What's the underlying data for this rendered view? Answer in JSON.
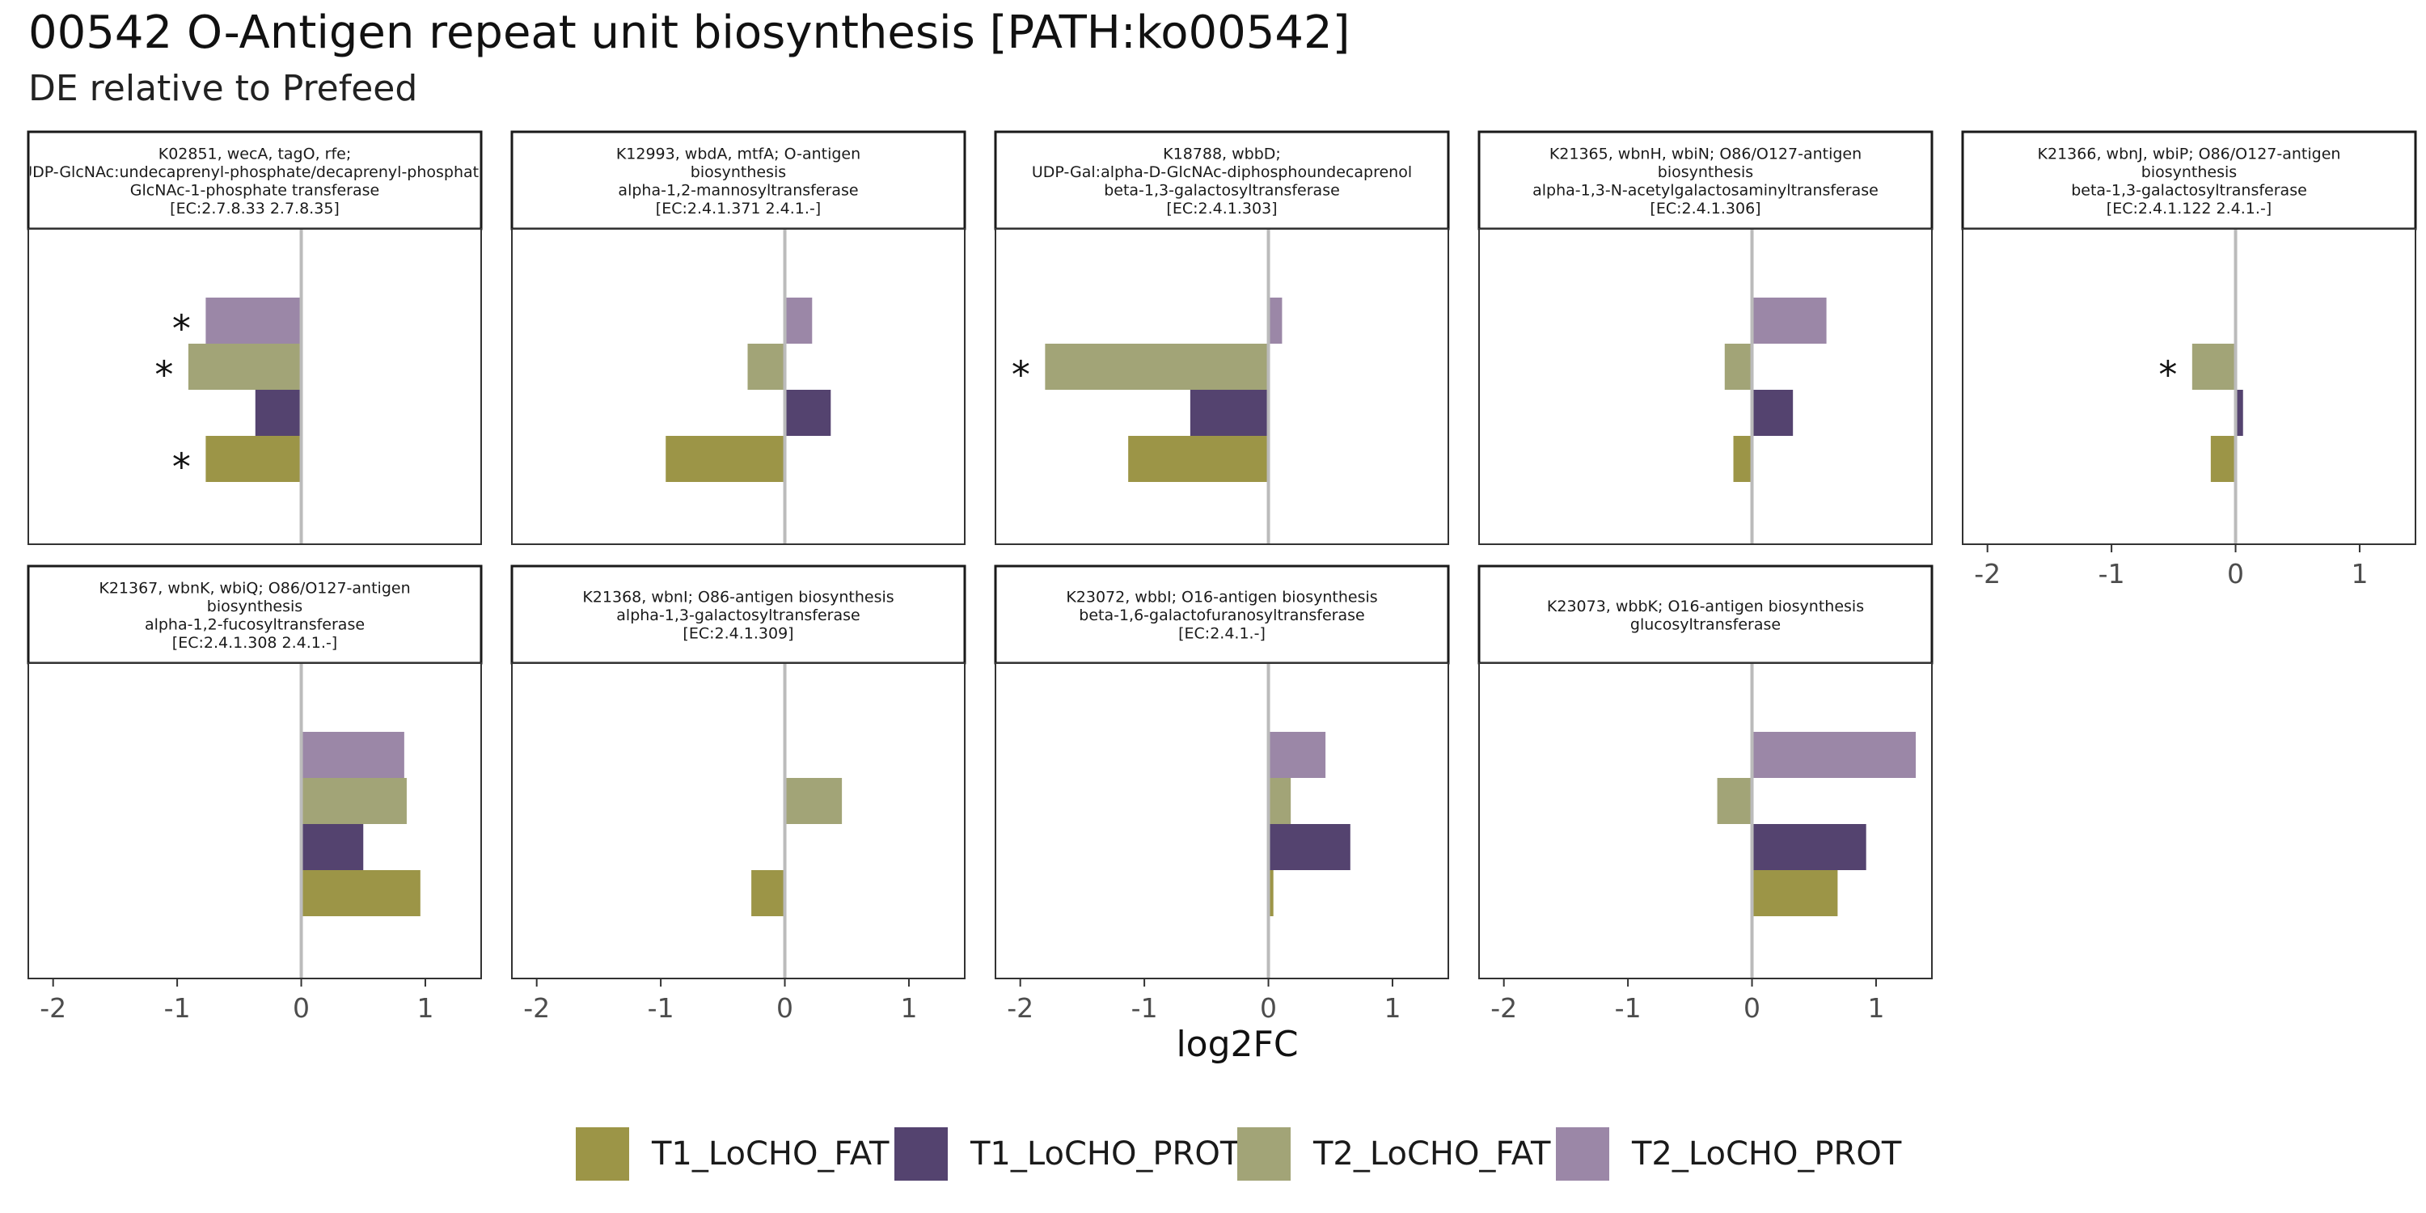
{
  "header": {
    "title": "00542 O-Antigen repeat unit biosynthesis [PATH:ko00542]",
    "subtitle": "DE relative to Prefeed"
  },
  "colors": {
    "T1_LoCHO_FAT": "#9c9547",
    "T1_LoCHO_PROT": "#54436f",
    "T2_LoCHO_FAT": "#a2a477",
    "T2_LoCHO_PROT": "#9b87a7",
    "zero_line": "#bbbbbb",
    "panel_border": "#333333",
    "strip_border": "#1a1a1a"
  },
  "chart_data": {
    "type": "bar",
    "orientation": "horizontal",
    "xlabel": "log2FC",
    "xlim": [
      -2.2,
      1.45
    ],
    "xticks": [
      -2,
      -1,
      0,
      1
    ],
    "xtick_labels": [
      "-2",
      "-1",
      "0",
      "1"
    ],
    "grid": false,
    "legend_position": "bottom",
    "series_order": [
      "T2_LoCHO_PROT",
      "T2_LoCHO_FAT",
      "T1_LoCHO_PROT",
      "T1_LoCHO_FAT"
    ],
    "legend": [
      "T1_LoCHO_FAT",
      "T1_LoCHO_PROT",
      "T2_LoCHO_FAT",
      "T2_LoCHO_PROT"
    ],
    "significance_marker": "*",
    "panels": [
      {
        "strip": [
          "K02851, wecA, tagO, rfe;",
          "UDP-GlcNAc:undecaprenyl-phosphate/decaprenyl-phosphate",
          "GlcNAc-1-phosphate transferase",
          "[EC:2.7.8.33 2.7.8.35]"
        ],
        "values": {
          "T2_LoCHO_PROT": -0.77,
          "T2_LoCHO_FAT": -0.91,
          "T1_LoCHO_PROT": -0.37,
          "T1_LoCHO_FAT": -0.77
        },
        "significant": {
          "T2_LoCHO_PROT": true,
          "T2_LoCHO_FAT": true,
          "T1_LoCHO_PROT": false,
          "T1_LoCHO_FAT": true
        }
      },
      {
        "strip": [
          "K12993, wbdA, mtfA; O-antigen",
          "biosynthesis",
          "alpha-1,2-mannosyltransferase",
          "[EC:2.4.1.371 2.4.1.-]"
        ],
        "values": {
          "T2_LoCHO_PROT": 0.22,
          "T2_LoCHO_FAT": -0.3,
          "T1_LoCHO_PROT": 0.37,
          "T1_LoCHO_FAT": -0.96
        },
        "significant": {
          "T2_LoCHO_PROT": false,
          "T2_LoCHO_FAT": false,
          "T1_LoCHO_PROT": false,
          "T1_LoCHO_FAT": false
        }
      },
      {
        "strip": [
          "K18788, wbbD;",
          "UDP-Gal:alpha-D-GlcNAc-diphosphoundecaprenol",
          "beta-1,3-galactosyltransferase",
          "[EC:2.4.1.303]"
        ],
        "values": {
          "T2_LoCHO_PROT": 0.11,
          "T2_LoCHO_FAT": -1.8,
          "T1_LoCHO_PROT": -0.63,
          "T1_LoCHO_FAT": -1.13
        },
        "significant": {
          "T2_LoCHO_PROT": false,
          "T2_LoCHO_FAT": true,
          "T1_LoCHO_PROT": false,
          "T1_LoCHO_FAT": false
        }
      },
      {
        "strip": [
          "K21365, wbnH, wbiN; O86/O127-antigen",
          "biosynthesis",
          "alpha-1,3-N-acetylgalactosaminyltransferase",
          "[EC:2.4.1.306]"
        ],
        "values": {
          "T2_LoCHO_PROT": 0.6,
          "T2_LoCHO_FAT": -0.22,
          "T1_LoCHO_PROT": 0.33,
          "T1_LoCHO_FAT": -0.15
        },
        "significant": {
          "T2_LoCHO_PROT": false,
          "T2_LoCHO_FAT": false,
          "T1_LoCHO_PROT": false,
          "T1_LoCHO_FAT": false
        }
      },
      {
        "strip": [
          "K21366, wbnJ, wbiP; O86/O127-antigen",
          "biosynthesis",
          "beta-1,3-galactosyltransferase",
          "[EC:2.4.1.122 2.4.1.-]"
        ],
        "values": {
          "T2_LoCHO_PROT": 0,
          "T2_LoCHO_FAT": -0.35,
          "T1_LoCHO_PROT": 0.06,
          "T1_LoCHO_FAT": -0.2
        },
        "significant": {
          "T2_LoCHO_PROT": false,
          "T2_LoCHO_FAT": true,
          "T1_LoCHO_PROT": false,
          "T1_LoCHO_FAT": false
        }
      },
      {
        "strip": [
          "K21367, wbnK, wbiQ; O86/O127-antigen",
          "biosynthesis",
          "alpha-1,2-fucosyltransferase",
          "[EC:2.4.1.308 2.4.1.-]"
        ],
        "values": {
          "T2_LoCHO_PROT": 0.83,
          "T2_LoCHO_FAT": 0.85,
          "T1_LoCHO_PROT": 0.5,
          "T1_LoCHO_FAT": 0.96
        },
        "significant": {
          "T2_LoCHO_PROT": false,
          "T2_LoCHO_FAT": false,
          "T1_LoCHO_PROT": false,
          "T1_LoCHO_FAT": false
        }
      },
      {
        "strip": [
          "K21368, wbnI; O86-antigen biosynthesis",
          "alpha-1,3-galactosyltransferase",
          "[EC:2.4.1.309]"
        ],
        "values": {
          "T2_LoCHO_PROT": 0,
          "T2_LoCHO_FAT": 0.46,
          "T1_LoCHO_PROT": 0,
          "T1_LoCHO_FAT": -0.27
        },
        "significant": {
          "T2_LoCHO_PROT": false,
          "T2_LoCHO_FAT": false,
          "T1_LoCHO_PROT": false,
          "T1_LoCHO_FAT": false
        }
      },
      {
        "strip": [
          "K23072, wbbI; O16-antigen biosynthesis",
          "beta-1,6-galactofuranosyltransferase",
          "[EC:2.4.1.-]"
        ],
        "values": {
          "T2_LoCHO_PROT": 0.46,
          "T2_LoCHO_FAT": 0.18,
          "T1_LoCHO_PROT": 0.66,
          "T1_LoCHO_FAT": 0.04
        },
        "significant": {
          "T2_LoCHO_PROT": false,
          "T2_LoCHO_FAT": false,
          "T1_LoCHO_PROT": false,
          "T1_LoCHO_FAT": false
        }
      },
      {
        "strip": [
          "K23073, wbbK; O16-antigen biosynthesis",
          "glucosyltransferase"
        ],
        "values": {
          "T2_LoCHO_PROT": 1.32,
          "T2_LoCHO_FAT": -0.28,
          "T1_LoCHO_PROT": 0.92,
          "T1_LoCHO_FAT": 0.69
        },
        "significant": {
          "T2_LoCHO_PROT": false,
          "T2_LoCHO_FAT": false,
          "T1_LoCHO_PROT": false,
          "T1_LoCHO_FAT": false
        }
      }
    ]
  }
}
